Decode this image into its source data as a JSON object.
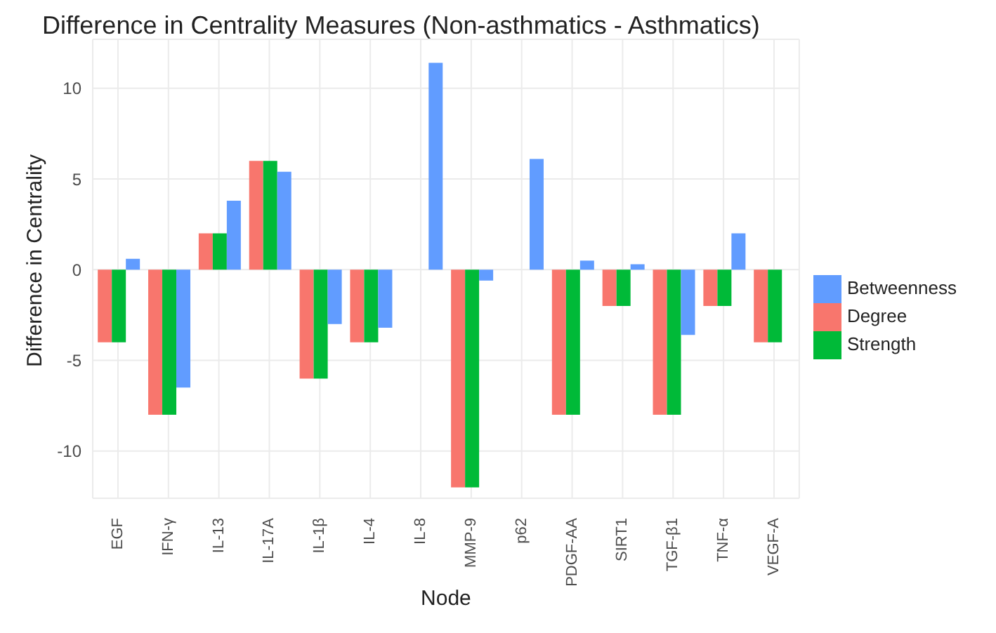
{
  "chart_data": {
    "type": "bar",
    "title": "Difference in Centrality Measures (Non-asthmatics - Asthmatics)",
    "xlabel": "Node",
    "ylabel": "Difference in Centrality",
    "categories": [
      "EGF",
      "IFN-γ",
      "IL-13",
      "IL-17A",
      "IL-1β",
      "IL-4",
      "IL-8",
      "MMP-9",
      "p62",
      "PDGF-AA",
      "SIRT1",
      "TGF-β1",
      "TNF-α",
      "VEGF-A"
    ],
    "series": [
      {
        "name": "Degree",
        "color": "#f8766d",
        "values": [
          -4,
          -8,
          2,
          6,
          -6,
          -4,
          0,
          -12,
          0,
          -8,
          -2,
          -8,
          -2,
          -4
        ]
      },
      {
        "name": "Strength",
        "color": "#00ba38",
        "values": [
          -4,
          -8,
          2,
          6,
          -6,
          -4,
          0,
          -12,
          0,
          -8,
          -2,
          -8,
          -2,
          -4
        ]
      },
      {
        "name": "Betweenness",
        "color": "#619cff",
        "values": [
          0.6,
          -6.5,
          3.8,
          5.4,
          -3,
          -3.2,
          11.4,
          -0.6,
          6.1,
          0.5,
          0.3,
          -3.6,
          2,
          0
        ]
      }
    ],
    "ylim": [
      -12.6,
      12.7
    ],
    "yticks": [
      -10,
      -5,
      0,
      5,
      10
    ],
    "grid": true,
    "legend": "right"
  }
}
